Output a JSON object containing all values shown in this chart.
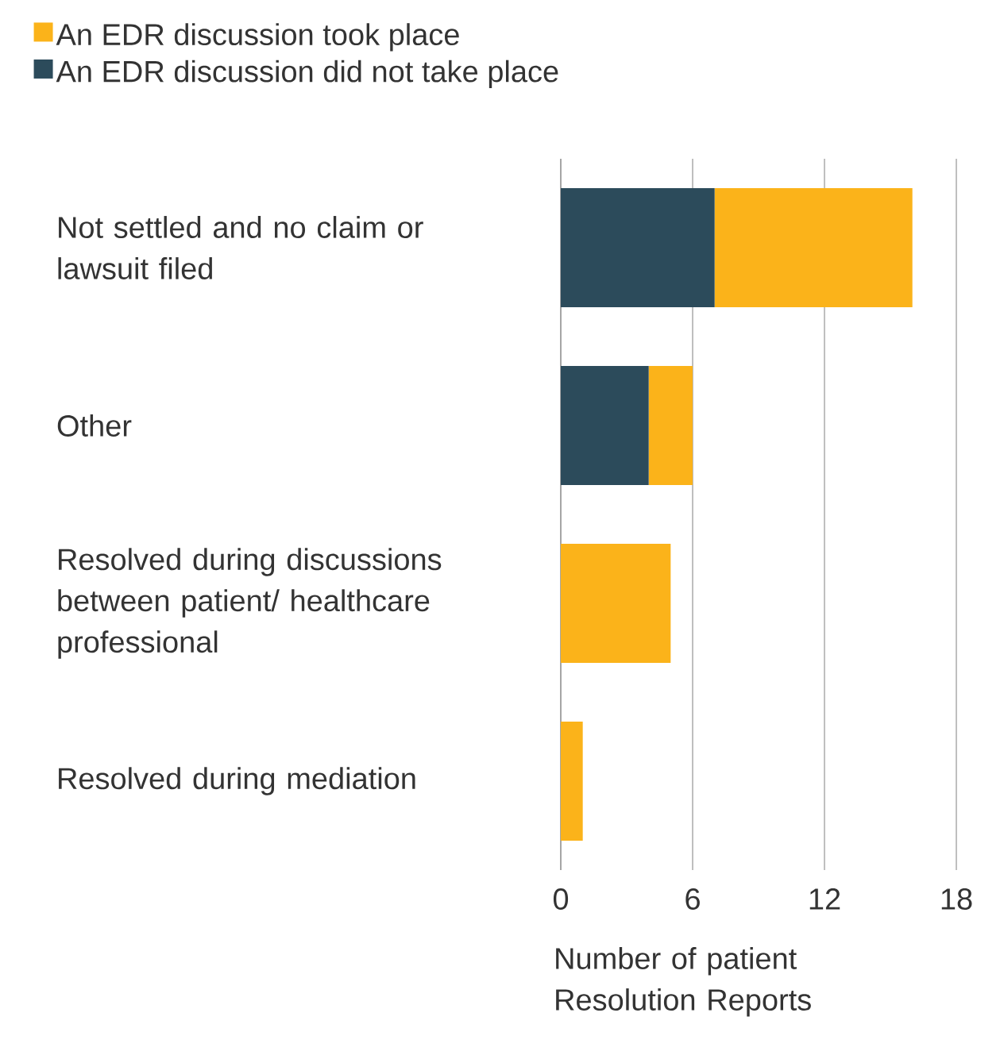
{
  "chart_data": {
    "type": "bar",
    "orientation": "horizontal",
    "stacked": true,
    "categories": [
      "Not settled and no claim or lawsuit filed",
      "Other",
      "Resolved during discussions between patient/ healthcare professional",
      "Resolved during mediation"
    ],
    "series": [
      {
        "name": "An EDR discussion did not take place",
        "color": "#2c4b5b",
        "values": [
          7,
          4,
          0,
          0
        ]
      },
      {
        "name": "An EDR discussion took place",
        "color": "#fbb31a",
        "values": [
          9,
          2,
          5,
          1
        ]
      }
    ],
    "xlim": [
      0,
      18
    ],
    "xticks": [
      0,
      6,
      12,
      18
    ],
    "xlabel": "Number of patient Resolution Reports",
    "grid": "x",
    "legend": "top left"
  }
}
